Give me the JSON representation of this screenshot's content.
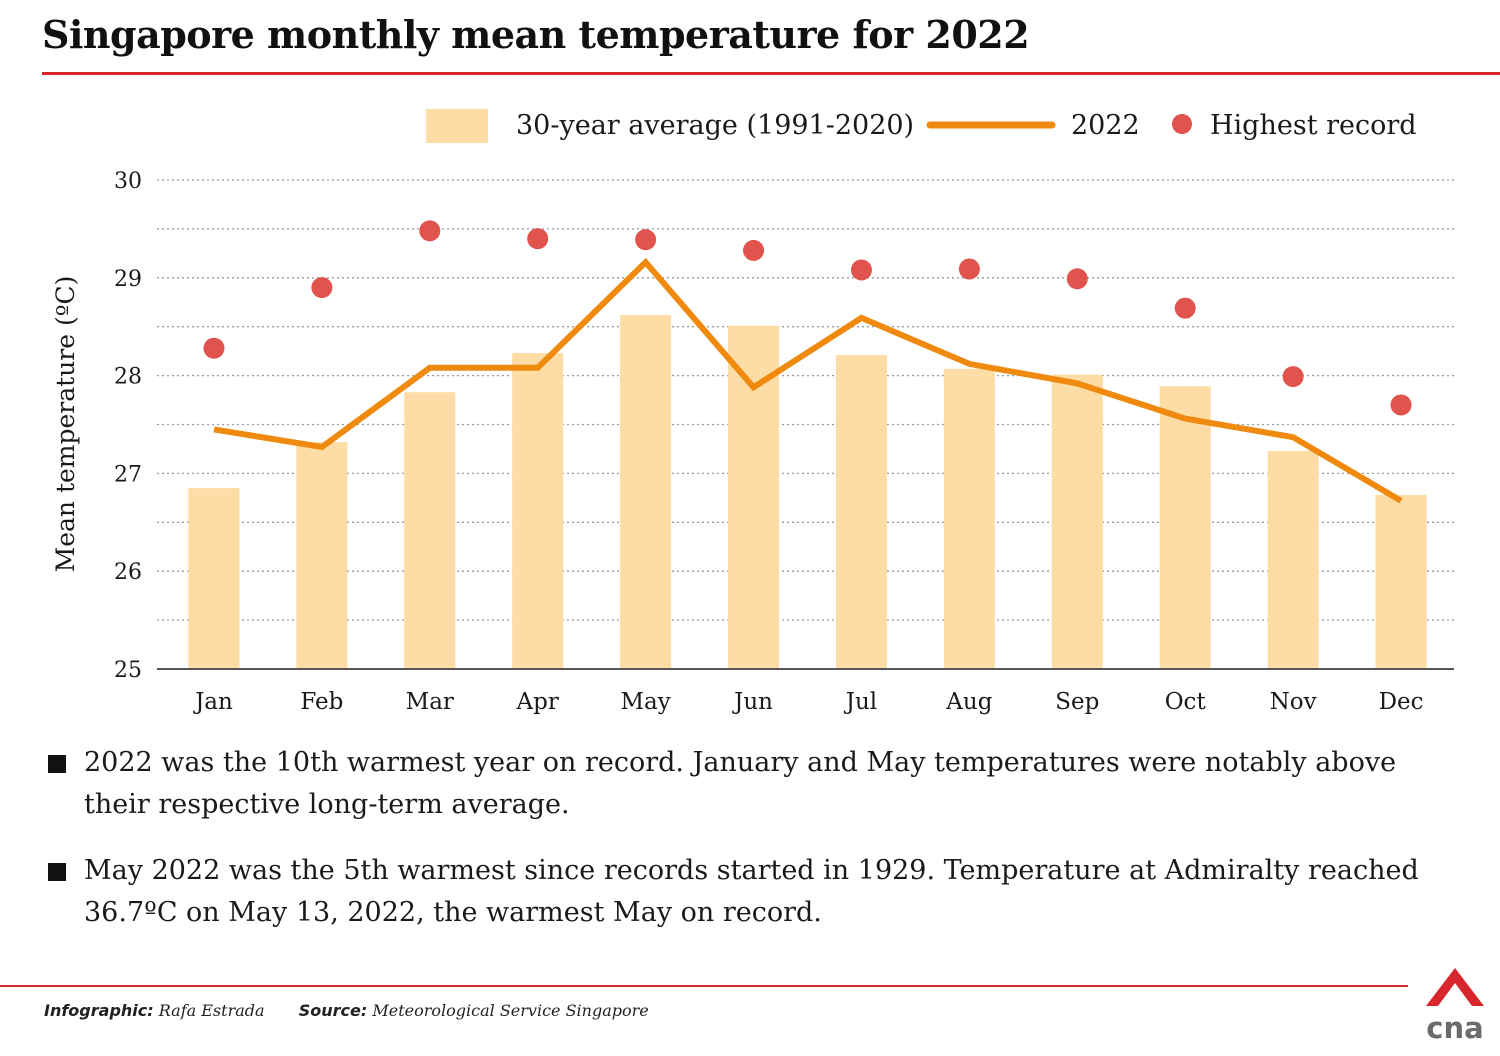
{
  "title": "Singapore monthly mean temperature for 2022",
  "legend": {
    "average_label": "30-year average (1991-2020)",
    "line_label": "2022",
    "record_label": "Highest record"
  },
  "colors": {
    "bar": "#fddca6",
    "line": "#ef8a0f",
    "record": "#e1534d",
    "accent": "#d7262c"
  },
  "chart_data": {
    "type": "bar",
    "title": "Singapore monthly mean temperature for 2022",
    "xlabel": "",
    "ylabel": "Mean temperature (ºC)",
    "ylim": [
      25,
      30
    ],
    "yticks": [
      25,
      26,
      27,
      28,
      29,
      30
    ],
    "grid": true,
    "legend_position": "top-right",
    "categories": [
      "Jan",
      "Feb",
      "Mar",
      "Apr",
      "May",
      "Jun",
      "Jul",
      "Aug",
      "Sep",
      "Oct",
      "Nov",
      "Dec"
    ],
    "series": [
      {
        "name": "30-year average (1991-2020)",
        "type": "bar",
        "values": [
          26.85,
          27.32,
          27.83,
          28.23,
          28.62,
          28.51,
          28.21,
          28.07,
          28.01,
          27.89,
          27.23,
          26.78
        ]
      },
      {
        "name": "2022",
        "type": "line",
        "values": [
          27.45,
          27.27,
          28.08,
          28.08,
          29.16,
          27.88,
          28.59,
          28.12,
          27.92,
          27.56,
          27.37,
          26.72
        ]
      },
      {
        "name": "Highest record",
        "type": "scatter",
        "values": [
          28.28,
          28.9,
          29.48,
          29.4,
          29.39,
          29.28,
          29.08,
          29.09,
          28.99,
          28.69,
          27.99,
          27.7
        ]
      }
    ]
  },
  "notes": [
    "2022 was the 10th warmest year on record. January and May temperatures were notably above their respective long-term average.",
    "May 2022 was the 5th warmest since records started in 1929. Temperature at Admiralty reached 36.7ºC on May 13, 2022, the warmest May on record."
  ],
  "footer": {
    "infographic_label": "Infographic:",
    "infographic_value": "Rafa Estrada",
    "source_label": "Source:",
    "source_value": "Meteorological Service Singapore"
  },
  "logo": {
    "text": "cna",
    "icon": "cna-logo-icon"
  }
}
